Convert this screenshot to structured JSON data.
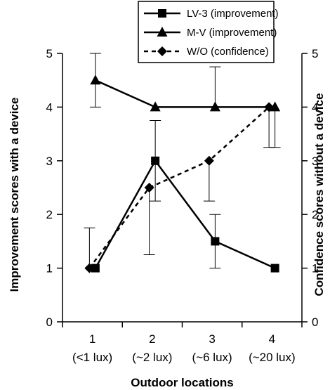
{
  "chart_data": {
    "type": "line",
    "xlabel": "Outdoor locations",
    "ylabel_left": "Improvement scores with a device",
    "ylabel_right": "Confidence scores without a device",
    "ylim": [
      0,
      5
    ],
    "yticks": [
      "0",
      "1",
      "2",
      "3",
      "4",
      "5"
    ],
    "x": [
      1,
      2,
      3,
      4
    ],
    "x_tick_labels": [
      "1",
      "2",
      "3",
      "4"
    ],
    "x_tick_sublabels": [
      "(<1 lux)",
      "(~2 lux)",
      "(~6 lux)",
      "(~20 lux)"
    ],
    "grid": false,
    "legend_position": "top",
    "series": [
      {
        "name": "LV-3 (improvement)",
        "values": [
          1,
          3,
          1.5,
          1
        ],
        "error_low": [
          null,
          2.25,
          1,
          null
        ],
        "error_high": [
          null,
          3.75,
          2,
          null
        ],
        "marker": "square",
        "line": "solid",
        "x_offset": 0.05
      },
      {
        "name": "M-V (improvement)",
        "values": [
          4.5,
          4,
          4,
          4
        ],
        "error_low": [
          4,
          null,
          null,
          3.25
        ],
        "error_high": [
          5,
          null,
          4.75,
          null
        ],
        "marker": "triangle",
        "line": "solid",
        "x_offset": 0.05
      },
      {
        "name": "W/O (confidence)",
        "values": [
          1,
          2.5,
          3,
          4
        ],
        "error_low": [
          null,
          1.25,
          2.25,
          3.25
        ],
        "error_high": [
          1.75,
          null,
          null,
          null
        ],
        "marker": "diamond",
        "line": "dashed",
        "x_offset": -0.05
      }
    ]
  }
}
